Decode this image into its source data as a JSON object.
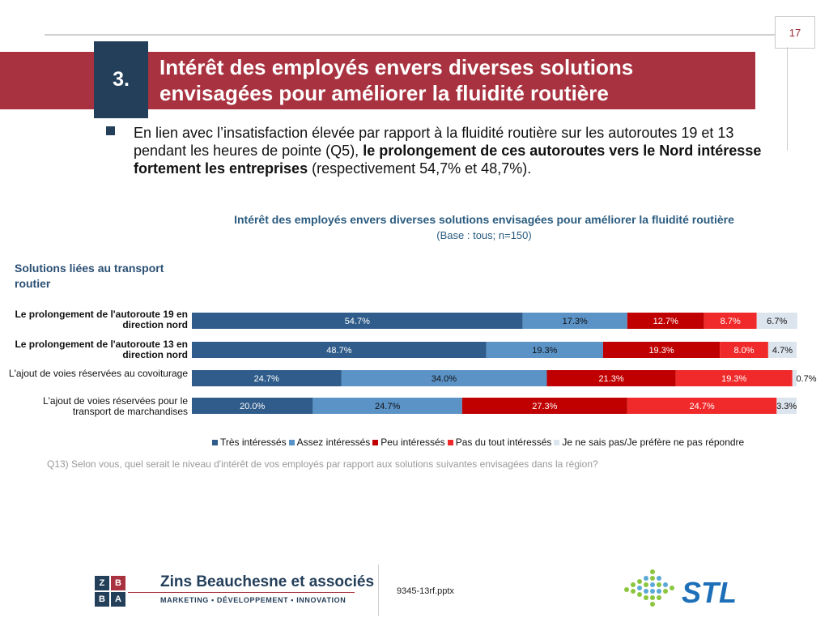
{
  "page": {
    "number": "17",
    "section_number": "3.",
    "title": "Intérêt des employés envers diverses solutions envisagées pour améliorer la fluidité routière"
  },
  "bullet": {
    "part1": "En lien avec l’insatisfaction élevée par rapport à la fluidité routière sur les autoroutes 19 et 13 pendant les heures de pointe (Q5), ",
    "bold": "le prolongement de ces autoroutes vers le Nord intéresse fortement les entreprises",
    "part2": " (respectivement 54,7% et 48,7%)."
  },
  "group_label": "Solutions liées au transport routier",
  "question": "Q13) Selon vous, quel serait le niveau d'intérêt de vos employés par rapport aux solutions suivantes envisagées dans la région?",
  "footer": {
    "firm_name": "Zins Beauchesne et associés",
    "firm_tagline": "MARKETING ▪ DÉVELOPPEMENT ▪ INNOVATION",
    "zba_letters": [
      "Z",
      "B",
      "B",
      "A"
    ],
    "filename": "9345-13rf.pptx",
    "partner_logo_text": "STL"
  },
  "colors": {
    "brand_red": "#a8323f",
    "brand_navy": "#243f5a",
    "chart_title_blue": "#2a5b7f"
  },
  "chart_data": {
    "type": "bar",
    "orientation": "horizontal",
    "stacked": true,
    "title": "Intérêt des employés envers diverses solutions envisagées pour améliorer la fluidité routière",
    "subtitle": "(Base : tous; n=150)",
    "categories": [
      "Le prolongement de l'autoroute 19 en direction nord",
      "Le prolongement de l'autoroute 13 en direction nord",
      "L'ajout de voies réservées au covoiturage",
      "L'ajout de voies réservées pour le transport de marchandises"
    ],
    "category_bold": [
      true,
      true,
      false,
      false
    ],
    "xlim": [
      0,
      100
    ],
    "legend_position": "bottom",
    "series": [
      {
        "name": "Très intéressés",
        "color": "#2f5c8a",
        "values": [
          54.7,
          48.7,
          24.7,
          20.0
        ],
        "labels": [
          "54.7%",
          "48.7%",
          "24.7%",
          "20.0%"
        ],
        "label_color": "#ffffff"
      },
      {
        "name": "Assez intéressés",
        "color": "#5b93c7",
        "values": [
          17.3,
          19.3,
          34.0,
          24.7
        ],
        "labels": [
          "17.3%",
          "19.3%",
          "34.0%",
          "24.7%"
        ],
        "label_color": "#111111"
      },
      {
        "name": "Peu intéressés",
        "color": "#c00000",
        "values": [
          12.7,
          19.3,
          21.3,
          27.3
        ],
        "labels": [
          "12.7%",
          "19.3%",
          "21.3%",
          "27.3%"
        ],
        "label_color": "#ffffff"
      },
      {
        "name": "Pas du tout intéressés",
        "color": "#f02a2a",
        "values": [
          8.7,
          8.0,
          19.3,
          24.7
        ],
        "labels": [
          "8.7%",
          "8.0%",
          "19.3%",
          "24.7%"
        ],
        "label_color": "#ffffff"
      },
      {
        "name": "Je ne sais pas/Je préfère ne pas répondre",
        "color": "#dce4ee",
        "values": [
          6.7,
          4.7,
          0.7,
          3.3
        ],
        "labels": [
          "6.7%",
          "4.7%",
          "0.7%",
          "3.3%"
        ],
        "label_color": "#111111"
      }
    ]
  }
}
